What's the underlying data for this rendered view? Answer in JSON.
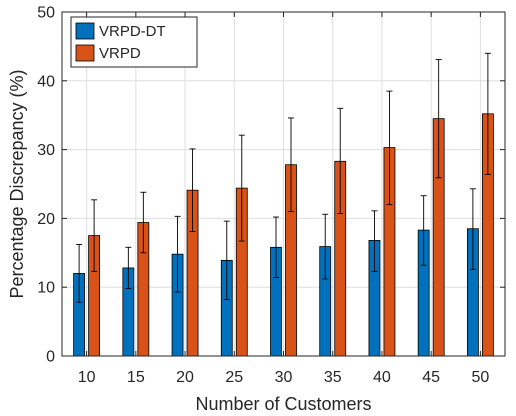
{
  "chart_data": {
    "type": "bar",
    "xlabel": "Number of Customers",
    "ylabel": "Percentage Discrepancy (%)",
    "categories": [
      "10",
      "15",
      "20",
      "25",
      "30",
      "35",
      "40",
      "45",
      "50"
    ],
    "ylim": [
      0,
      50
    ],
    "yticks": [
      0,
      10,
      20,
      30,
      40,
      50
    ],
    "grid": true,
    "legend_position": "top-left",
    "series": [
      {
        "name": "VRPD-DT",
        "color": "#0072BD",
        "values": [
          12.0,
          12.8,
          14.8,
          13.9,
          15.8,
          15.9,
          16.8,
          18.3,
          18.5
        ],
        "error_low": [
          7.8,
          9.8,
          9.3,
          8.2,
          11.4,
          11.2,
          12.3,
          13.2,
          12.6
        ],
        "error_high": [
          16.2,
          15.8,
          20.3,
          19.6,
          20.2,
          20.6,
          21.1,
          23.3,
          24.3
        ]
      },
      {
        "name": "VRPD",
        "color": "#D95319",
        "values": [
          17.5,
          19.4,
          24.1,
          24.4,
          27.8,
          28.3,
          30.3,
          34.5,
          35.2
        ],
        "error_low": [
          12.3,
          15.0,
          18.1,
          16.7,
          21.0,
          20.7,
          22.0,
          25.9,
          26.4
        ],
        "error_high": [
          22.7,
          23.8,
          30.1,
          32.1,
          34.6,
          36.0,
          38.5,
          43.1,
          44.0
        ]
      }
    ]
  }
}
